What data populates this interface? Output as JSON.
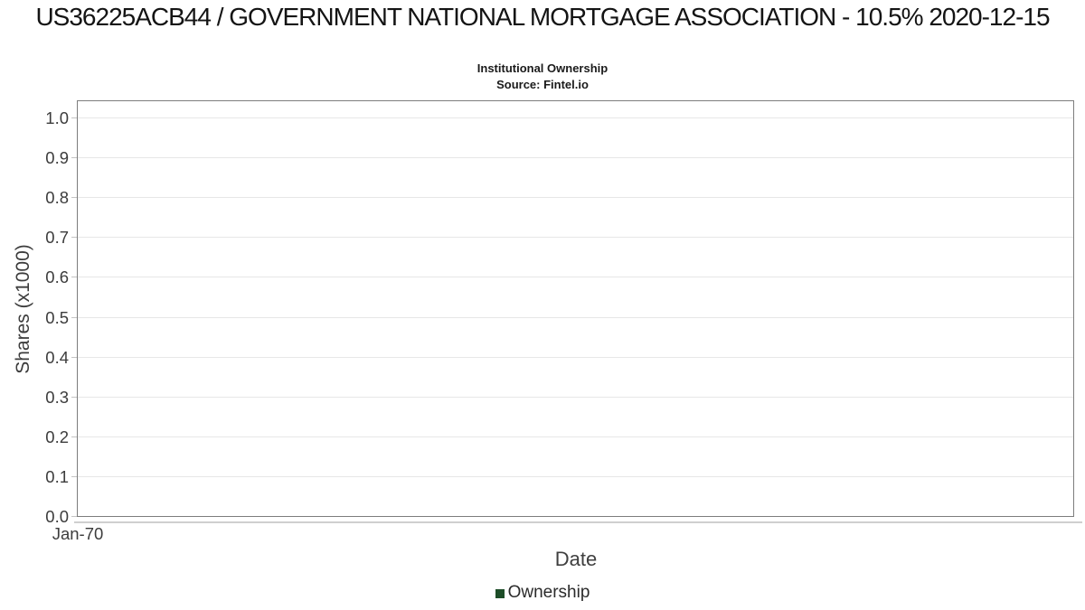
{
  "chart_data": {
    "type": "line",
    "title": "US36225ACB44 / GOVERNMENT NATIONAL MORTGAGE ASSOCIATION - 10.5% 2020-12-15",
    "subtitle": "Institutional Ownership",
    "source_label": "Source: Fintel.io",
    "xlabel": "Date",
    "ylabel": "Shares (x1000)",
    "x_ticks": [
      "Jan-70"
    ],
    "y_ticks": [
      "1.0",
      "0.9",
      "0.8",
      "0.7",
      "0.6",
      "0.5",
      "0.4",
      "0.3",
      "0.2",
      "0.1",
      "0.0"
    ],
    "ylim": [
      0.0,
      1.045
    ],
    "grid": "horizontal",
    "legend_position": "bottom",
    "series": [
      {
        "name": "Ownership",
        "color": "#1d4d28",
        "x": [],
        "values": []
      }
    ],
    "colors": {
      "plot_border": "#7d7d7d",
      "gridline": "#e7e7e7",
      "tick_mark": "#c4c4c4",
      "axis_underline": "#cfcfcf"
    }
  }
}
